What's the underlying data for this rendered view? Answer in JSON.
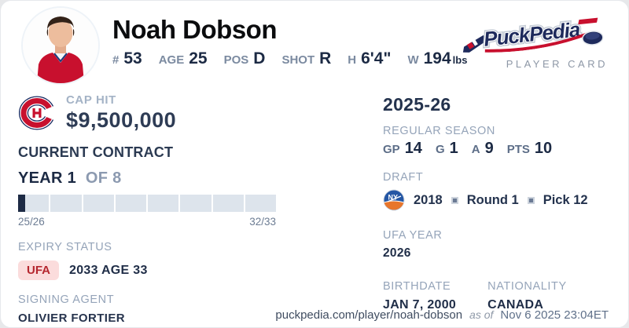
{
  "header": {
    "player_name": "Noah Dobson",
    "vitals": [
      {
        "label": "#",
        "value": "53"
      },
      {
        "label": "AGE",
        "value": "25"
      },
      {
        "label": "POS",
        "value": "D"
      },
      {
        "label": "SHOT",
        "value": "R"
      },
      {
        "label": "H",
        "value": "6'4\""
      },
      {
        "label": "W",
        "value": "194",
        "suffix": "lbs"
      }
    ],
    "logo_text": "PuckPedia",
    "tagline": "PLAYER CARD"
  },
  "left": {
    "team_logo": "montreal-canadiens-logo",
    "cap_hit_label": "CAP HIT",
    "cap_hit_value": "$9,500,000",
    "section_title": "CURRENT CONTRACT",
    "year_label": "YEAR 1",
    "year_of_label": "OF 8",
    "progress": {
      "segments": 8,
      "first_segment_fill_pct": 23,
      "start_label": "25/26",
      "end_label": "32/33"
    },
    "expiry_label": "EXPIRY STATUS",
    "expiry_badge": "UFA",
    "expiry_value": "2033 AGE 33",
    "agent_label": "SIGNING AGENT",
    "agent_value": "OLIVIER FORTIER"
  },
  "right": {
    "season_title": "2025-26",
    "regular_season_label": "REGULAR SEASON",
    "season_stats": [
      {
        "label": "GP",
        "value": "14"
      },
      {
        "label": "G",
        "value": "1"
      },
      {
        "label": "A",
        "value": "9"
      },
      {
        "label": "PTS",
        "value": "10"
      }
    ],
    "draft_label": "DRAFT",
    "draft_team_logo": "new-york-islanders-logo",
    "draft_parts": [
      "2018",
      "Round 1",
      "Pick 12"
    ],
    "ufa_year_label": "UFA YEAR",
    "ufa_year_value": "2026",
    "birthdate_label": "BIRTHDATE",
    "birthdate_value": "JAN 7, 2000",
    "nationality_label": "NATIONALITY",
    "nationality_value": "CANADA"
  },
  "footer": {
    "url": "puckpedia.com/player/noah-dobson",
    "as_of_label": "as of",
    "timestamp": "Nov 6 2025 23:04ET"
  },
  "colors": {
    "navy_text": "#1c2a44",
    "label_light": "#95a4b9",
    "label_mid": "#5d6e88",
    "accent_red": "#c8102e",
    "badge_bg": "#fbdcdc",
    "badge_text": "#b5262e",
    "bar_track": "#dde4ec",
    "bar_fill": "#1e2b45"
  }
}
